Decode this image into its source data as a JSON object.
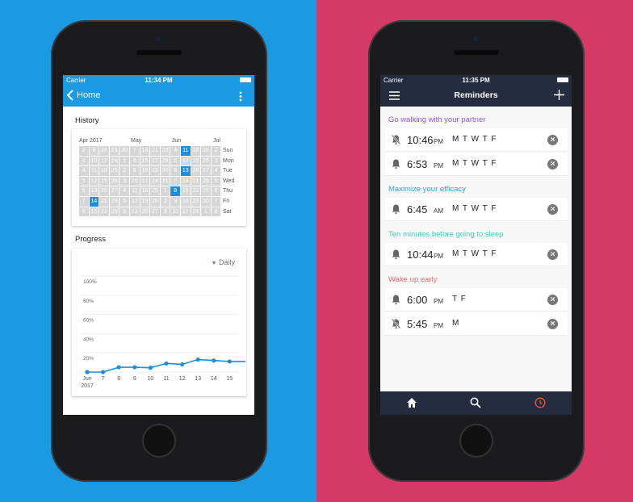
{
  "colors": {
    "left_bg": "#1b9ae4",
    "right_bg": "#d53966",
    "accent_blue": "#1a8fe0",
    "header_dark": "#252c40",
    "clock_active": "#f0592a"
  },
  "left": {
    "status": {
      "carrier": "Carrier",
      "time": "11:34 PM"
    },
    "nav": {
      "back_label": "Home",
      "back_icon": "chevron-left-icon",
      "menu_icon": "more-vertical-icon"
    },
    "history": {
      "title": "History",
      "months": [
        "Apr",
        "2017",
        "May",
        "Jun",
        "Jul"
      ],
      "weekdays": [
        "Sun",
        "Mon",
        "Tue",
        "Wed",
        "Thu",
        "Fri",
        "Sat"
      ],
      "columns": [
        [
          2,
          3,
          4,
          5,
          6,
          7,
          8
        ],
        [
          9,
          10,
          11,
          12,
          13,
          14,
          15
        ],
        [
          16,
          17,
          18,
          19,
          20,
          21,
          22
        ],
        [
          23,
          24,
          25,
          26,
          27,
          28,
          29
        ],
        [
          30,
          1,
          2,
          3,
          4,
          5,
          6
        ],
        [
          7,
          8,
          9,
          10,
          11,
          12,
          13
        ],
        [
          14,
          15,
          16,
          17,
          18,
          19,
          20
        ],
        [
          21,
          22,
          23,
          24,
          25,
          26,
          27
        ],
        [
          28,
          29,
          30,
          31,
          1,
          2,
          3
        ],
        [
          4,
          5,
          6,
          7,
          8,
          9,
          10
        ],
        [
          11,
          12,
          13,
          14,
          15,
          16,
          17
        ],
        [
          18,
          19,
          20,
          21,
          22,
          23,
          24
        ],
        [
          25,
          26,
          27,
          28,
          29,
          30,
          1
        ],
        [
          2,
          3,
          4,
          5,
          6,
          7,
          8
        ]
      ],
      "highlighted": [
        {
          "col": 1,
          "row": 5
        },
        {
          "col": 10,
          "row": 0
        },
        {
          "col": 10,
          "row": 2
        },
        {
          "col": 9,
          "row": 4
        }
      ]
    },
    "progress": {
      "title": "Progress",
      "period": "Daily"
    },
    "chart_data": {
      "type": "line",
      "x": [
        "Jun 6",
        "7",
        "8",
        "9",
        "10",
        "11",
        "12",
        "13",
        "14",
        "15",
        "16"
      ],
      "tick_labels": [
        "Jun",
        "7",
        "8",
        "9",
        "10",
        "11",
        "12",
        "13",
        "14",
        "15"
      ],
      "tick_sublabel": "2017",
      "y_ticks": [
        "100%",
        "80%",
        "60%",
        "40%",
        "20%"
      ],
      "values": [
        0,
        0,
        5,
        5,
        4.5,
        9,
        8,
        13,
        12,
        11,
        11
      ],
      "ylim": [
        0,
        100
      ],
      "grid": true,
      "color": "#1a8fe0"
    }
  },
  "right": {
    "status": {
      "carrier": "Carrier",
      "time": "11:35 PM"
    },
    "header": {
      "title": "Reminders",
      "menu_icon": "hamburger-icon",
      "add_icon": "plus-icon"
    },
    "groups": [
      {
        "title": "Go walking with your partner",
        "color": "#8a5be0",
        "items": [
          {
            "time": "10:46",
            "ampm": "PM",
            "days": "M T W T F",
            "muted": true
          },
          {
            "time": "6:53",
            "ampm": "PM",
            "days": "M T W T F",
            "muted": false
          }
        ]
      },
      {
        "title": "Maximize your efficacy",
        "color": "#2aa7ea",
        "items": [
          {
            "time": "6:45",
            "ampm": "AM",
            "days": "M T W T F",
            "muted": false
          }
        ]
      },
      {
        "title": "Ten minutes before going to sleep",
        "color": "#3fd0b8",
        "items": [
          {
            "time": "10:44",
            "ampm": "PM",
            "days": "M T W T F",
            "muted": false
          }
        ]
      },
      {
        "title": "Wake up early",
        "color": "#f06a6a",
        "items": [
          {
            "time": "6:00",
            "ampm": "PM",
            "days": "T F",
            "muted": false
          },
          {
            "time": "5:45",
            "ampm": "PM",
            "days": "M",
            "muted": true
          }
        ]
      }
    ],
    "tabs": [
      {
        "icon": "home-icon"
      },
      {
        "icon": "search-icon"
      },
      {
        "icon": "clock-icon",
        "active": true
      }
    ]
  }
}
